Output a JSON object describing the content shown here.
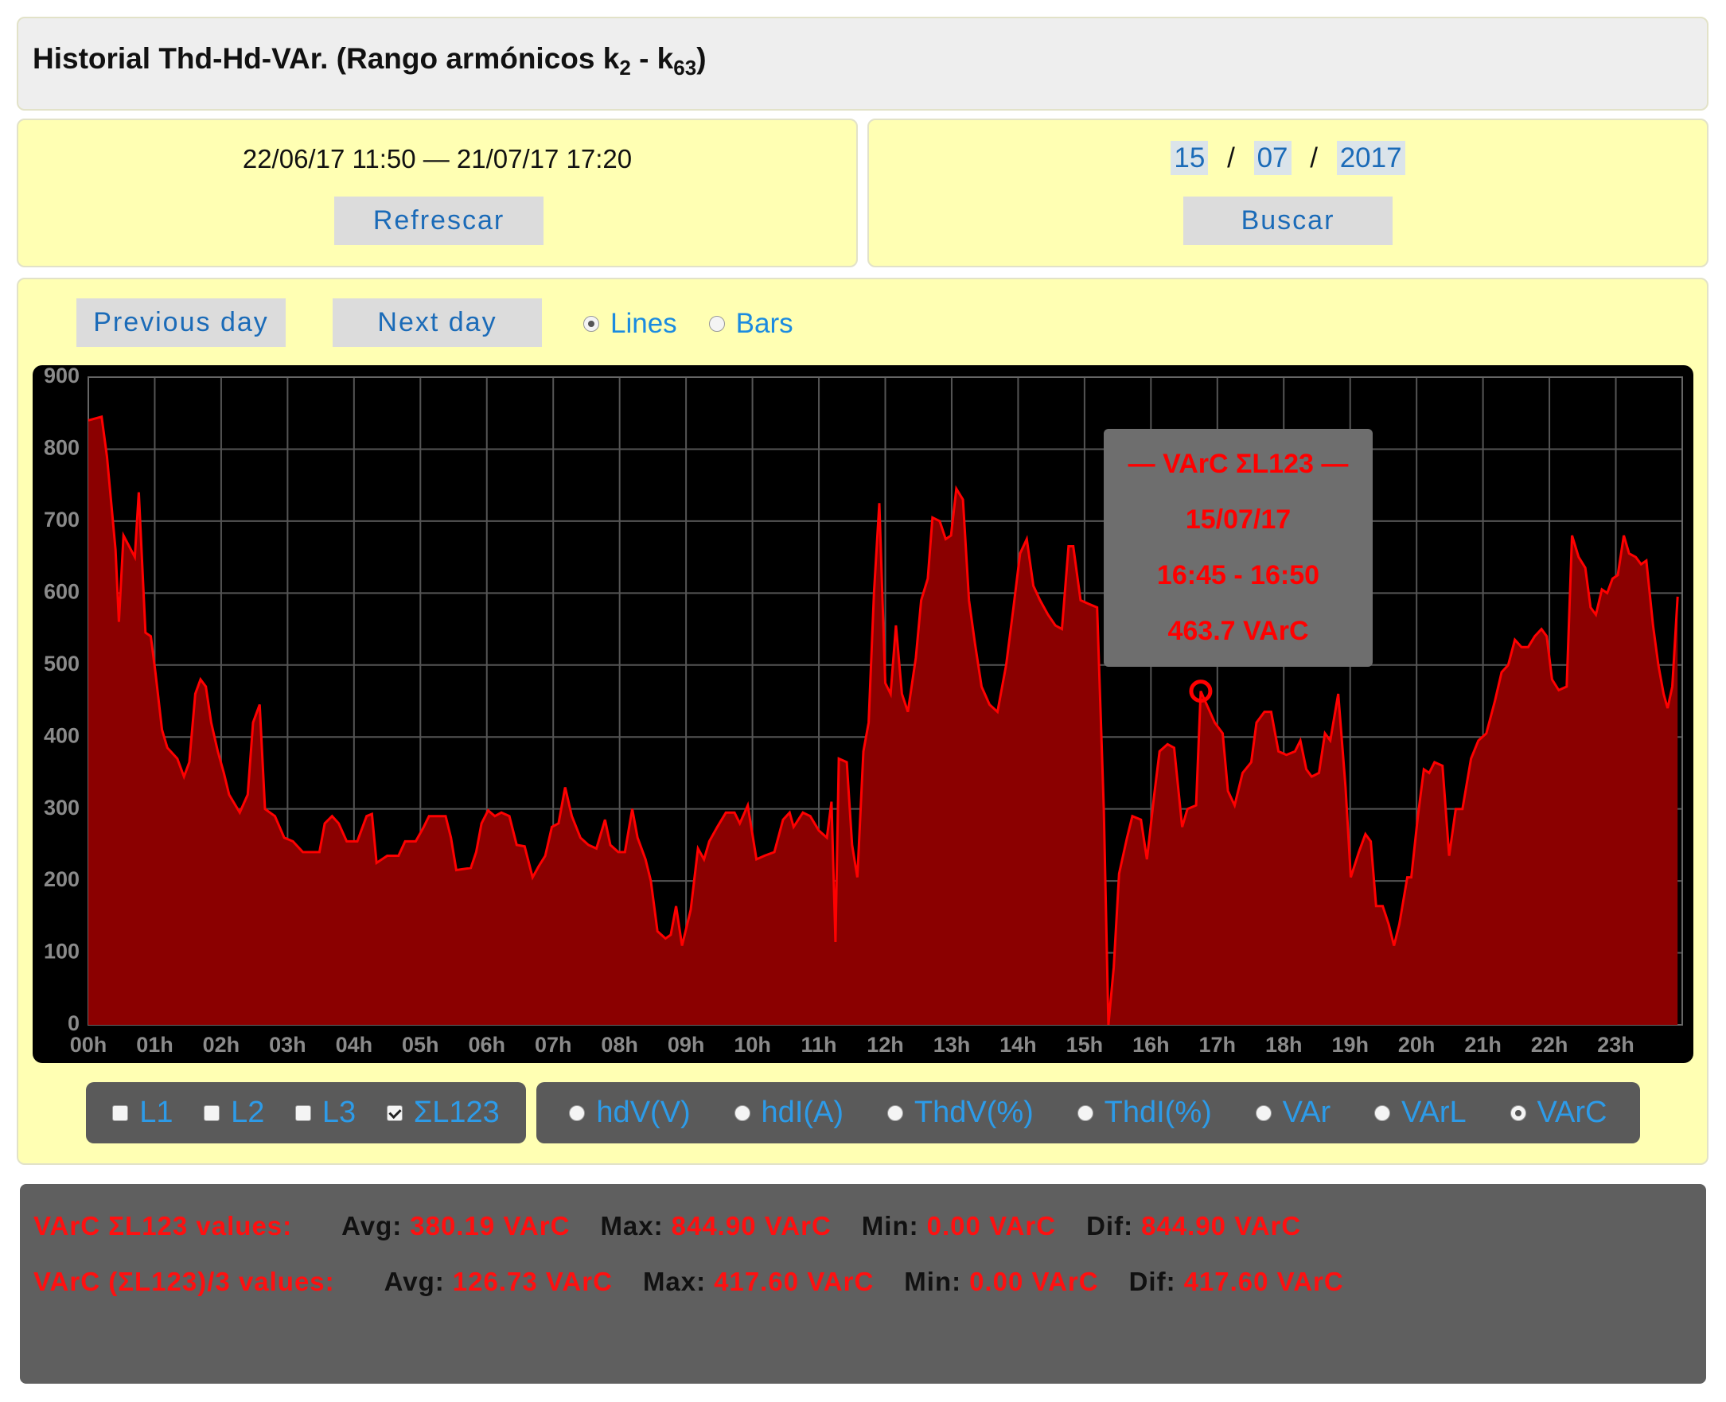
{
  "header": {
    "title_parts": [
      "Historial Thd-Hd-VAr. (Rango armónicos k",
      "2",
      " - k",
      "63",
      ")"
    ]
  },
  "range_panel": {
    "range": "22/06/17 11:50 — 21/07/17 17:20",
    "button": "Refrescar"
  },
  "date_panel": {
    "day": "15",
    "month": "07",
    "year": "2017",
    "separator": "/",
    "button": "Buscar"
  },
  "nav": {
    "previous": "Previous day",
    "next": "Next day",
    "modes": [
      {
        "label": "Lines",
        "checked": true
      },
      {
        "label": "Bars",
        "checked": false
      }
    ]
  },
  "chart_data": {
    "type": "area",
    "color": "#ff0000",
    "fill": "#8b0000",
    "grid": true,
    "xlim": [
      0,
      24
    ],
    "xticks": [
      {
        "value": 0,
        "label": "00h"
      },
      {
        "value": 1,
        "label": "01h"
      },
      {
        "value": 2,
        "label": "02h"
      },
      {
        "value": 3,
        "label": "03h"
      },
      {
        "value": 4,
        "label": "04h"
      },
      {
        "value": 5,
        "label": "05h"
      },
      {
        "value": 6,
        "label": "06h"
      },
      {
        "value": 7,
        "label": "07h"
      },
      {
        "value": 8,
        "label": "08h"
      },
      {
        "value": 9,
        "label": "09h"
      },
      {
        "value": 10,
        "label": "10h"
      },
      {
        "value": 11,
        "label": "11h"
      },
      {
        "value": 12,
        "label": "12h"
      },
      {
        "value": 13,
        "label": "13h"
      },
      {
        "value": 14,
        "label": "14h"
      },
      {
        "value": 15,
        "label": "15h"
      },
      {
        "value": 16,
        "label": "16h"
      },
      {
        "value": 17,
        "label": "17h"
      },
      {
        "value": 18,
        "label": "18h"
      },
      {
        "value": 19,
        "label": "19h"
      },
      {
        "value": 20,
        "label": "20h"
      },
      {
        "value": 21,
        "label": "21h"
      },
      {
        "value": 22,
        "label": "22h"
      },
      {
        "value": 23,
        "label": "23h"
      }
    ],
    "ylim": [
      0,
      900
    ],
    "yticks": [
      0,
      100,
      200,
      300,
      400,
      500,
      600,
      700,
      800,
      900
    ],
    "x": [
      0,
      0.2,
      0.28,
      0.41,
      0.46,
      0.53,
      0.7,
      0.76,
      0.86,
      0.94,
      1.01,
      1.11,
      1.19,
      1.34,
      1.44,
      1.52,
      1.61,
      1.69,
      1.77,
      1.85,
      1.95,
      2.04,
      2.12,
      2.28,
      2.4,
      2.48,
      2.58,
      2.66,
      2.81,
      2.95,
      3.08,
      3.23,
      3.48,
      3.56,
      3.67,
      3.77,
      3.89,
      4.05,
      4.19,
      4.27,
      4.34,
      4.5,
      4.67,
      4.77,
      4.93,
      5.05,
      5.13,
      5.38,
      5.46,
      5.54,
      5.76,
      5.84,
      5.92,
      6.02,
      6.12,
      6.22,
      6.34,
      6.45,
      6.57,
      6.69,
      6.78,
      6.88,
      6.98,
      7.08,
      7.18,
      7.28,
      7.41,
      7.53,
      7.65,
      7.78,
      7.86,
      7.98,
      8.08,
      8.19,
      8.27,
      8.39,
      8.47,
      8.57,
      8.69,
      8.77,
      8.85,
      8.94,
      9.07,
      9.18,
      9.27,
      9.35,
      9.47,
      9.6,
      9.73,
      9.81,
      9.93,
      10.06,
      10.18,
      10.33,
      10.46,
      10.56,
      10.62,
      10.76,
      10.87,
      11.0,
      11.12,
      11.19,
      11.25,
      11.3,
      11.42,
      11.5,
      11.58,
      11.67,
      11.75,
      11.83,
      11.91,
      12.0,
      12.08,
      12.16,
      12.25,
      12.34,
      12.46,
      12.54,
      12.64,
      12.71,
      12.82,
      12.91,
      12.99,
      13.07,
      13.17,
      13.26,
      13.35,
      13.45,
      13.57,
      13.69,
      13.82,
      13.93,
      14.03,
      14.13,
      14.23,
      14.33,
      14.45,
      14.56,
      14.66,
      14.76,
      14.83,
      14.94,
      15.06,
      15.19,
      15.29,
      15.36,
      15.44,
      15.52,
      15.64,
      15.72,
      15.85,
      15.94,
      16.05,
      16.13,
      16.25,
      16.35,
      16.47,
      16.55,
      16.68,
      16.75,
      16.96,
      17.08,
      17.16,
      17.26,
      17.38,
      17.51,
      17.59,
      17.71,
      17.81,
      17.92,
      18.04,
      18.17,
      18.25,
      18.34,
      18.42,
      18.53,
      18.62,
      18.7,
      18.82,
      18.93,
      19.01,
      19.13,
      19.23,
      19.31,
      19.39,
      19.49,
      19.58,
      19.66,
      19.74,
      19.86,
      19.92,
      20.02,
      20.11,
      20.19,
      20.27,
      20.39,
      20.49,
      20.59,
      20.69,
      20.82,
      20.93,
      21.05,
      21.18,
      21.28,
      21.38,
      21.48,
      21.58,
      21.68,
      21.78,
      21.88,
      21.96,
      22.04,
      22.14,
      22.26,
      22.34,
      22.44,
      22.54,
      22.62,
      22.7,
      22.79,
      22.87,
      22.95,
      23.03,
      23.12,
      23.2,
      23.3,
      23.38,
      23.46,
      23.56,
      23.64,
      23.72,
      23.78,
      23.85,
      23.93
    ],
    "values": [
      840,
      844.9,
      790,
      660,
      560,
      680,
      650,
      740,
      545,
      540,
      490,
      410,
      385,
      370,
      345,
      365,
      460,
      480,
      470,
      420,
      380,
      350,
      320,
      295,
      320,
      420,
      445,
      300,
      290,
      260,
      255,
      240,
      240,
      280,
      290,
      280,
      255,
      255,
      290,
      293,
      225,
      235,
      235,
      255,
      255,
      275,
      290,
      290,
      260,
      215,
      218,
      240,
      280,
      298,
      290,
      295,
      290,
      250,
      248,
      205,
      220,
      235,
      275,
      280,
      330,
      290,
      260,
      250,
      245,
      285,
      250,
      240,
      240,
      300,
      260,
      230,
      200,
      130,
      120,
      125,
      165,
      110,
      160,
      245,
      230,
      255,
      275,
      295,
      295,
      280,
      305,
      230,
      235,
      240,
      285,
      295,
      275,
      295,
      290,
      270,
      260,
      310,
      115,
      370,
      365,
      250,
      205,
      380,
      420,
      600,
      725,
      475,
      460,
      555,
      460,
      435,
      510,
      590,
      620,
      705,
      700,
      675,
      680,
      745,
      730,
      590,
      530,
      470,
      445,
      435,
      500,
      580,
      655,
      675,
      610,
      590,
      570,
      555,
      550,
      665,
      665,
      590,
      585,
      580,
      300,
      0,
      80,
      210,
      260,
      290,
      285,
      230,
      320,
      380,
      390,
      385,
      275,
      300,
      305,
      463.7,
      420,
      405,
      325,
      305,
      350,
      365,
      420,
      435,
      435,
      380,
      375,
      380,
      395,
      355,
      345,
      350,
      405,
      395,
      460,
      330,
      205,
      240,
      265,
      255,
      165,
      165,
      140,
      110,
      140,
      205,
      205,
      290,
      355,
      350,
      365,
      360,
      235,
      300,
      300,
      370,
      395,
      405,
      450,
      490,
      500,
      535,
      525,
      525,
      540,
      550,
      540,
      480,
      465,
      470,
      680,
      650,
      635,
      580,
      570,
      605,
      600,
      620,
      625,
      680,
      655,
      650,
      640,
      645,
      555,
      500,
      460,
      440,
      470,
      595
    ],
    "tooltip": {
      "title": "— VArC ΣL123 —",
      "date": "15/07/17",
      "time": "16:45 - 16:50",
      "x": 16.75,
      "value": 463.7,
      "label": "463.7 VArC"
    }
  },
  "phases": [
    {
      "label": "L1",
      "checked": false
    },
    {
      "label": "L2",
      "checked": false
    },
    {
      "label": "L3",
      "checked": false
    },
    {
      "label": "ΣL123",
      "checked": true
    }
  ],
  "magnitudes": [
    {
      "label": "hdV(V)",
      "checked": false
    },
    {
      "label": "hdI(A)",
      "checked": false
    },
    {
      "label": "ThdV(%)",
      "checked": false
    },
    {
      "label": "ThdI(%)",
      "checked": false
    },
    {
      "label": "VAr",
      "checked": false
    },
    {
      "label": "VArL",
      "checked": false
    },
    {
      "label": "VArC",
      "checked": true
    }
  ],
  "stats": {
    "rows": [
      {
        "label": "VArC ΣL123 values:",
        "items": [
          {
            "key": "Avg:",
            "value": "380.19 VArC"
          },
          {
            "key": "Max:",
            "value": "844.90 VArC"
          },
          {
            "key": "Min:",
            "value": "0.00 VArC"
          },
          {
            "key": "Dif:",
            "value": "844.90 VArC"
          }
        ]
      },
      {
        "label": "VArC (ΣL123)/3 values:",
        "items": [
          {
            "key": "Avg:",
            "value": "126.73 VArC"
          },
          {
            "key": "Max:",
            "value": "417.60 VArC"
          },
          {
            "key": "Min:",
            "value": "0.00 VArC"
          },
          {
            "key": "Dif:",
            "value": "417.60 VArC"
          }
        ]
      }
    ]
  }
}
